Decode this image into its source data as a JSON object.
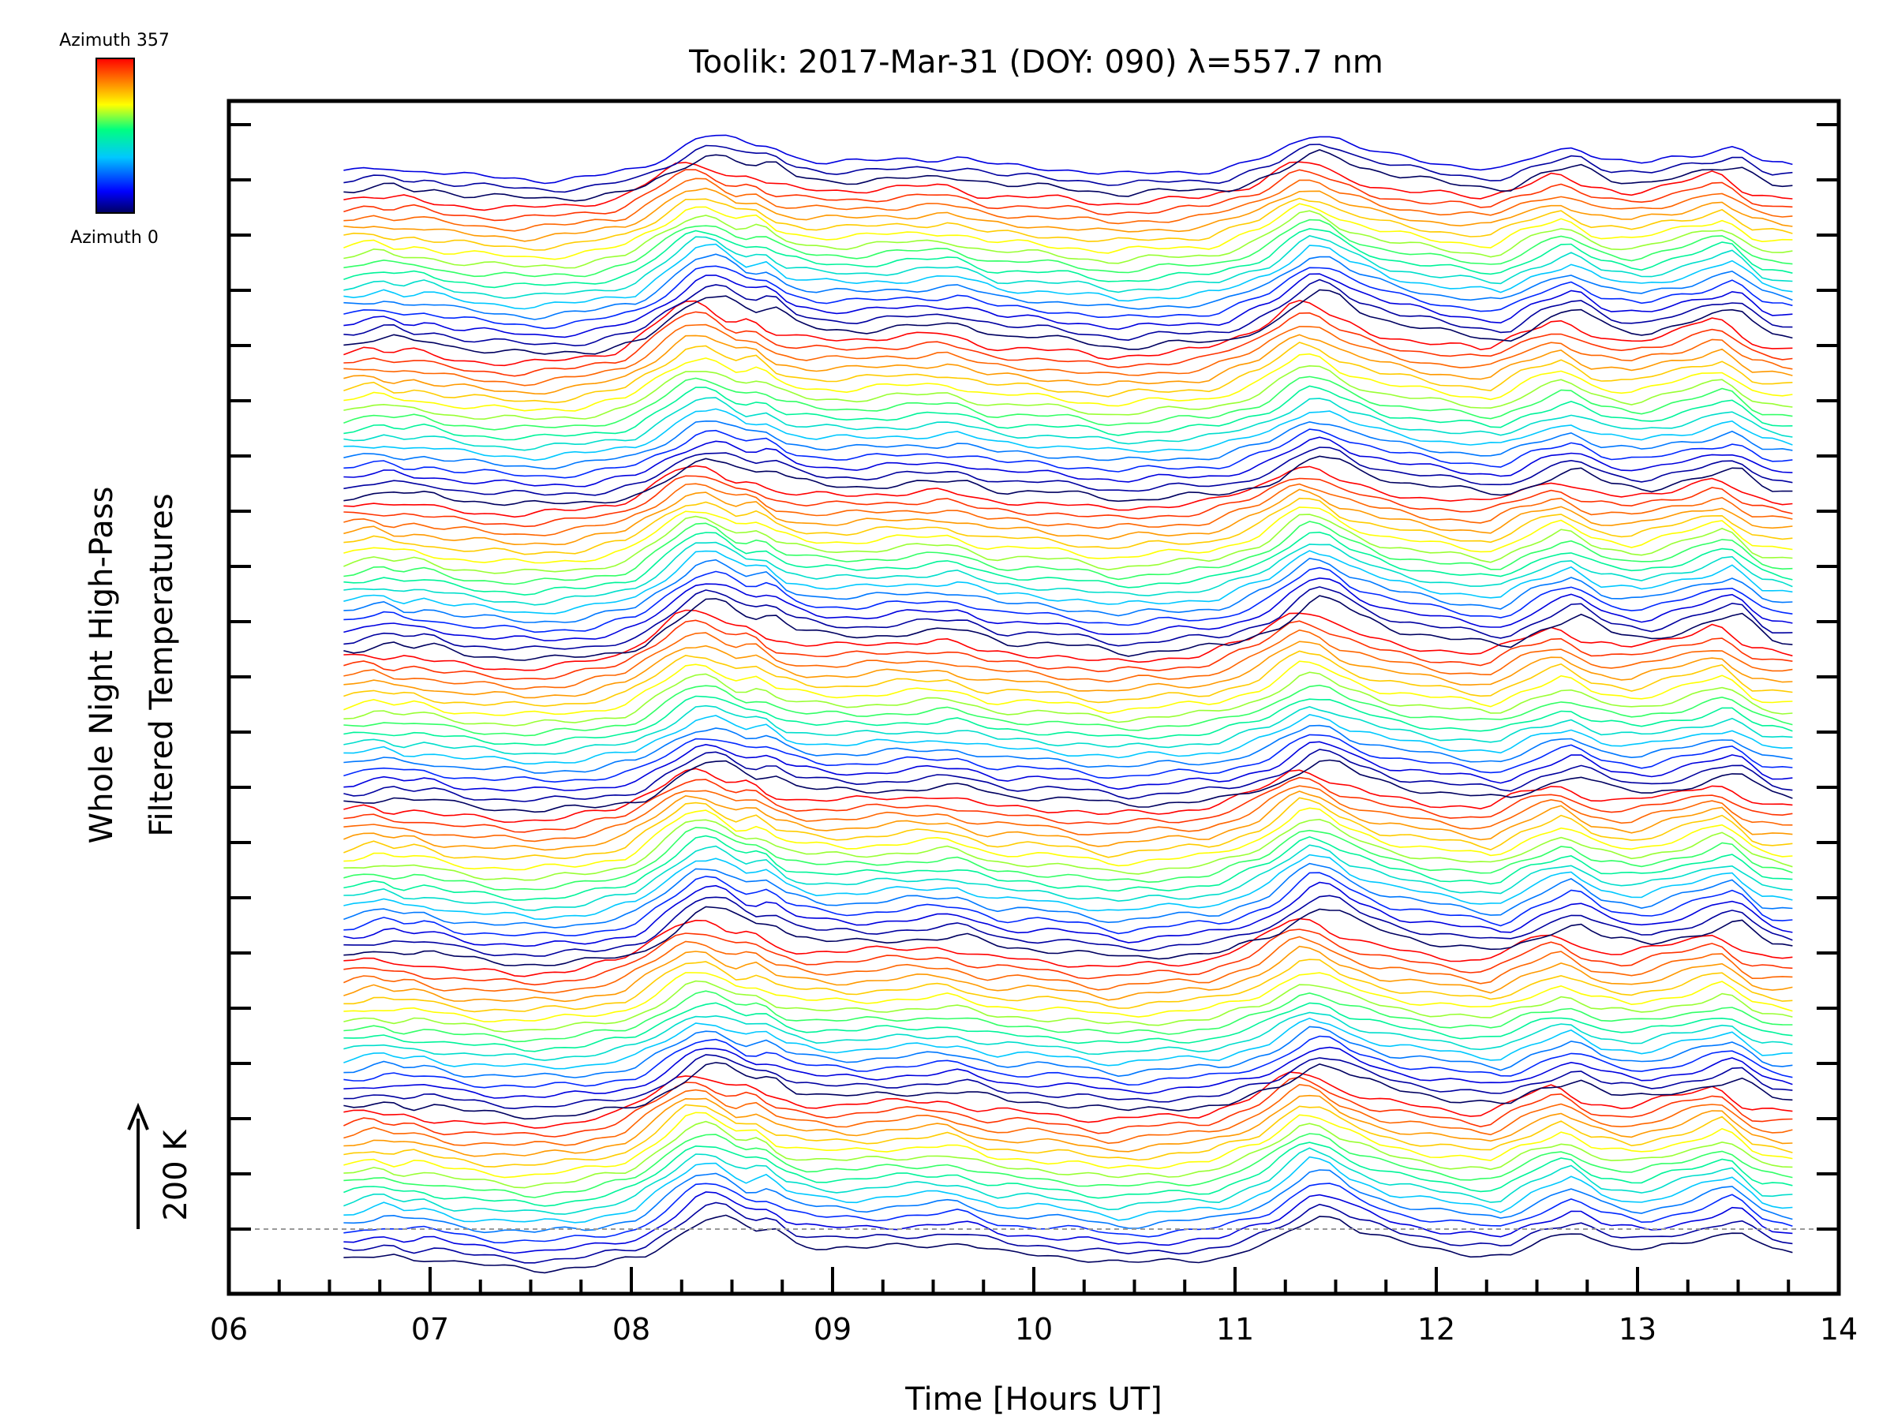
{
  "chart_data": {
    "type": "line",
    "title": "Toolik: 2017-Mar-31 (DOY: 090) λ=557.7 nm",
    "xlabel": "Time [Hours UT]",
    "ylabel_line1": "Whole Night High-Pass",
    "ylabel_line2": "Filtered Temperatures",
    "xlim": [
      6,
      14
    ],
    "x_ticks": [
      "06",
      "07",
      "08",
      "09",
      "10",
      "11",
      "12",
      "13",
      "14"
    ],
    "scale_bar_label": "200 K",
    "colorbar": {
      "top_label": "Azimuth 357",
      "bottom_label": "Azimuth 0",
      "colors": [
        "#000060",
        "#0000ff",
        "#00c8ff",
        "#00ff80",
        "#ffff00",
        "#ff8000",
        "#ff0000"
      ]
    },
    "azimuth_cycle": 16,
    "num_traces": 115,
    "x_start_hours": 6.57,
    "x_end_hours": 13.77,
    "template_profile": {
      "hours": [
        6.57,
        6.75,
        6.85,
        6.95,
        7.1,
        7.3,
        7.5,
        7.75,
        8.0,
        8.15,
        8.3,
        8.4,
        8.55,
        8.65,
        8.75,
        8.9,
        9.1,
        9.35,
        9.6,
        9.8,
        10.0,
        10.2,
        10.4,
        10.6,
        10.9,
        11.15,
        11.35,
        11.45,
        11.55,
        11.75,
        12.0,
        12.3,
        12.45,
        12.65,
        12.8,
        13.0,
        13.25,
        13.45,
        13.6,
        13.77
      ],
      "offset_K": [
        0,
        12,
        2,
        6,
        -6,
        -12,
        -16,
        -10,
        6,
        40,
        78,
        80,
        52,
        58,
        34,
        24,
        22,
        28,
        32,
        12,
        10,
        4,
        -6,
        0,
        6,
        36,
        84,
        78,
        56,
        32,
        18,
        6,
        32,
        56,
        28,
        18,
        38,
        58,
        18,
        10
      ]
    }
  }
}
